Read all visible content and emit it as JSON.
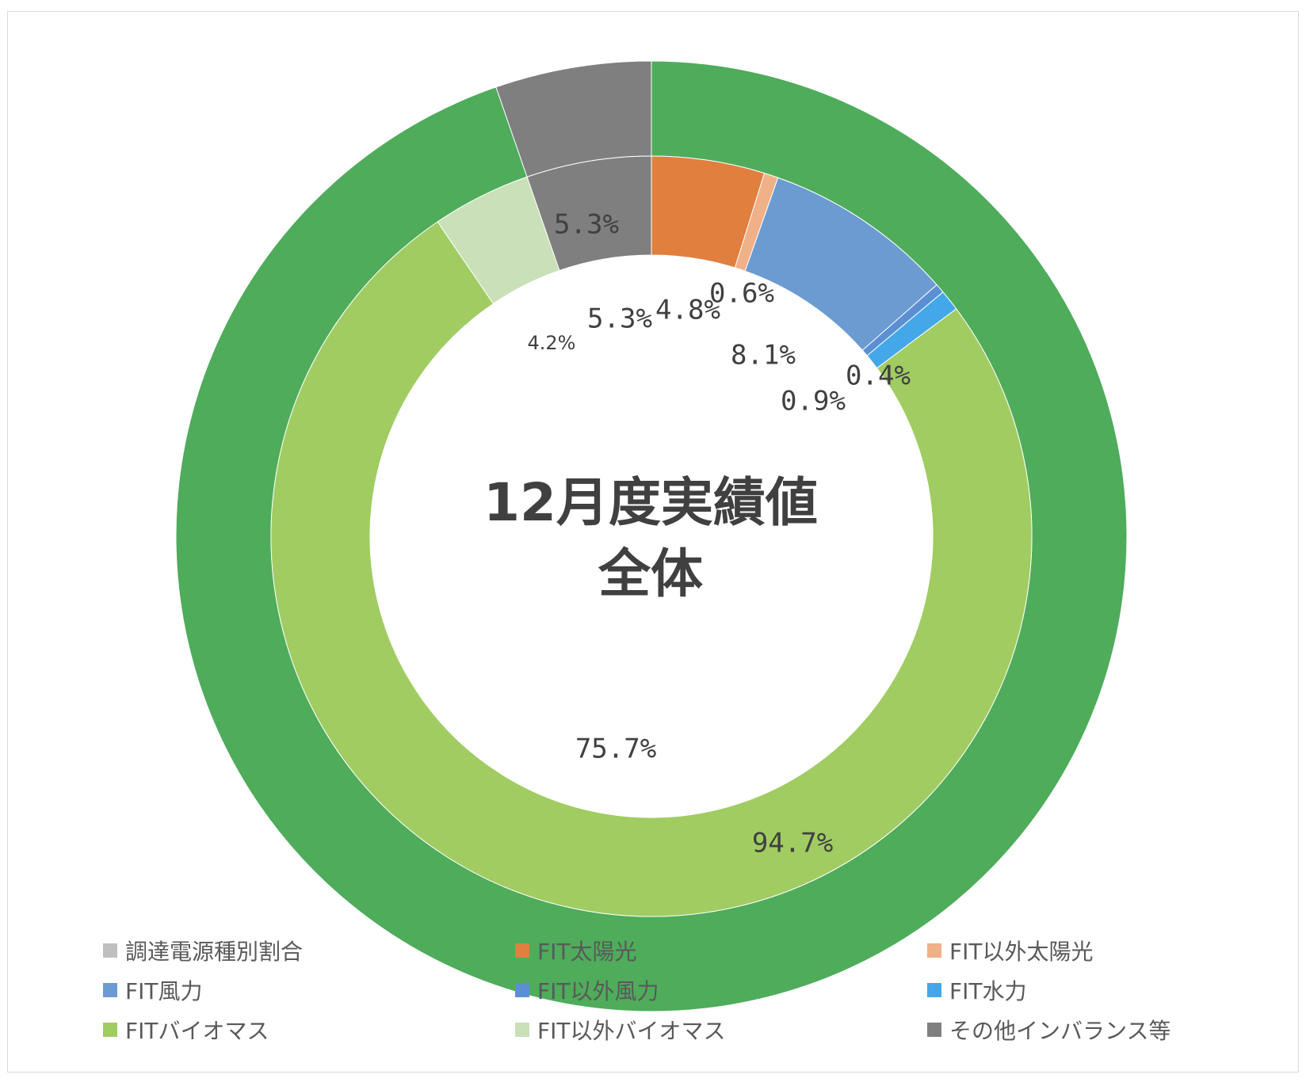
{
  "chart_data": {
    "type": "donut",
    "title": "12月度実績値",
    "subtitle": "全体",
    "rings": [
      {
        "name": "outer",
        "slices": [
          {
            "category": "FITバイオマス",
            "value": 94.7,
            "color": "#4eac5b",
            "label": "94.7%"
          },
          {
            "category": "その他インバランス等",
            "value": 5.3,
            "color": "#7f7f7f",
            "label": "5.3%"
          }
        ]
      },
      {
        "name": "inner",
        "slices": [
          {
            "category": "FIT太陽光",
            "value": 4.8,
            "color": "#e07f3e",
            "label": "4.8%"
          },
          {
            "category": "FIT以外太陽光",
            "value": 0.6,
            "color": "#f0b088",
            "label": "0.6%"
          },
          {
            "category": "FIT風力",
            "value": 8.1,
            "color": "#6b9bd1",
            "label": "8.1%"
          },
          {
            "category": "FIT以外風力",
            "value": 0.4,
            "color": "#5b8fd4",
            "label": "0.4%"
          },
          {
            "category": "FIT水力",
            "value": 0.9,
            "color": "#44a8e8",
            "label": "0.9%"
          },
          {
            "category": "FITバイオマス",
            "value": 75.7,
            "color": "#a0cc62",
            "label": "75.7%"
          },
          {
            "category": "FIT以外バイオマス",
            "value": 4.2,
            "color": "#cae0b8",
            "label": "4.2%"
          },
          {
            "category": "その他インバランス等",
            "value": 5.3,
            "color": "#7f7f7f",
            "label": "5.3%"
          }
        ]
      }
    ],
    "legend": {
      "placement": "bottom",
      "entries": [
        {
          "label": "調達電源種別割合",
          "color": "#bfbfbf"
        },
        {
          "label": "FIT太陽光",
          "color": "#e07f3e"
        },
        {
          "label": "FIT以外太陽光",
          "color": "#f0b088"
        },
        {
          "label": "FIT風力",
          "color": "#6b9bd1"
        },
        {
          "label": "FIT以外風力",
          "color": "#5b8fd4"
        },
        {
          "label": "FIT水力",
          "color": "#44a8e8"
        },
        {
          "label": "FITバイオマス",
          "color": "#a0cc62"
        },
        {
          "label": "FIT以外バイオマス",
          "color": "#cae0b8"
        },
        {
          "label": "その他インバランス等",
          "color": "#7f7f7f"
        }
      ]
    }
  }
}
